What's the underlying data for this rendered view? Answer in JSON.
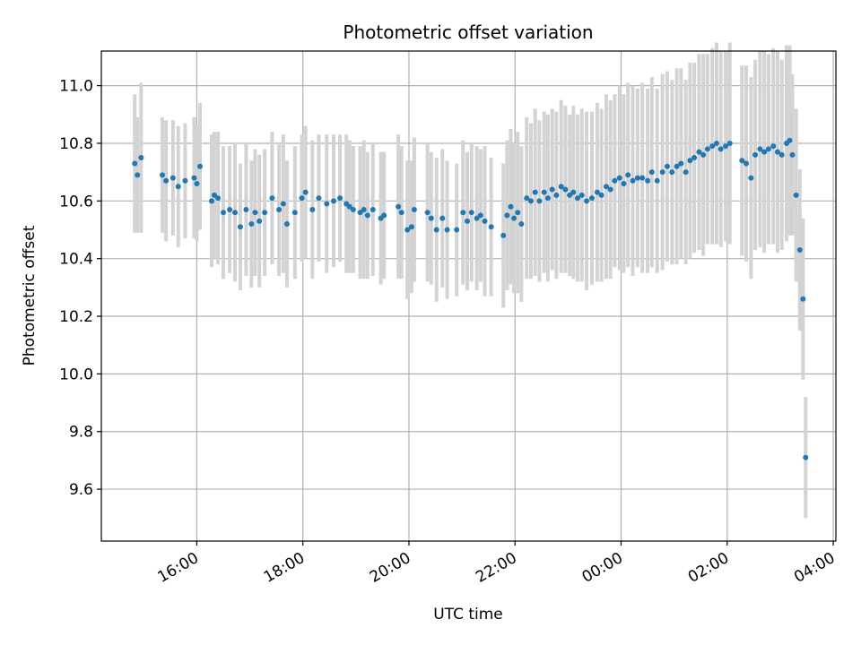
{
  "chart_data": {
    "type": "scatter",
    "title": "Photometric offset variation",
    "xlabel": "UTC time",
    "ylabel": "Photometric offset",
    "x_ticks": [
      "16:00",
      "18:00",
      "20:00",
      "22:00",
      "00:00",
      "02:00",
      "04:00"
    ],
    "y_ticks": [
      "9.6",
      "9.8",
      "10.0",
      "10.2",
      "10.4",
      "10.6",
      "10.8",
      "11.0"
    ],
    "ylim": [
      9.42,
      11.12
    ],
    "xlim_hours": [
      14.2,
      28.05
    ],
    "grid": true,
    "colors": {
      "points": "#1f77b4",
      "errorbars": "#d3d3d3",
      "grid": "#b0b0b0"
    },
    "series": [
      {
        "x_hours": [
          14.83,
          14.88,
          14.95,
          15.35,
          15.42,
          15.55,
          15.65,
          15.78,
          15.95,
          16.0,
          16.06,
          16.28,
          16.33,
          16.4,
          16.5,
          16.62,
          16.72,
          16.82,
          16.93,
          17.03,
          17.1,
          17.18,
          17.28,
          17.42,
          17.55,
          17.63,
          17.7,
          17.85,
          17.98,
          18.05,
          18.18,
          18.3,
          18.45,
          18.58,
          18.7,
          18.82,
          18.88,
          18.95,
          19.08,
          19.15,
          19.22,
          19.32,
          19.47,
          19.53,
          19.8,
          19.86,
          19.97,
          20.05,
          20.1,
          20.35,
          20.42,
          20.52,
          20.63,
          20.72,
          20.9,
          21.02,
          21.1,
          21.18,
          21.28,
          21.35,
          21.43,
          21.55,
          21.78,
          21.85,
          21.92,
          21.98,
          22.05,
          22.12,
          22.22,
          22.3,
          22.38,
          22.46,
          22.55,
          22.62,
          22.7,
          22.78,
          22.87,
          22.95,
          23.03,
          23.1,
          23.18,
          23.26,
          23.35,
          23.45,
          23.55,
          23.63,
          23.72,
          23.8,
          23.88,
          23.97,
          24.05,
          24.13,
          24.22,
          24.31,
          24.4,
          24.5,
          24.58,
          24.68,
          24.78,
          24.87,
          24.96,
          25.05,
          25.13,
          25.22,
          25.3,
          25.38,
          25.47,
          25.55,
          25.63,
          25.72,
          25.8,
          25.88,
          25.97,
          26.05,
          26.28,
          26.36,
          26.45,
          26.53,
          26.62,
          26.7,
          26.78,
          26.87,
          26.95,
          27.03,
          27.12,
          27.18,
          27.23,
          27.3,
          27.37,
          27.43,
          27.48
        ],
        "y": [
          10.73,
          10.69,
          10.75,
          10.69,
          10.67,
          10.68,
          10.65,
          10.67,
          10.68,
          10.66,
          10.72,
          10.6,
          10.62,
          10.61,
          10.56,
          10.57,
          10.56,
          10.51,
          10.57,
          10.52,
          10.56,
          10.53,
          10.56,
          10.61,
          10.57,
          10.59,
          10.52,
          10.56,
          10.61,
          10.63,
          10.57,
          10.61,
          10.59,
          10.6,
          10.61,
          10.59,
          10.58,
          10.57,
          10.56,
          10.57,
          10.55,
          10.57,
          10.54,
          10.55,
          10.58,
          10.56,
          10.5,
          10.51,
          10.57,
          10.56,
          10.54,
          10.5,
          10.54,
          10.5,
          10.5,
          10.56,
          10.53,
          10.56,
          10.54,
          10.55,
          10.53,
          10.51,
          10.48,
          10.55,
          10.58,
          10.54,
          10.56,
          10.52,
          10.61,
          10.6,
          10.63,
          10.6,
          10.63,
          10.61,
          10.64,
          10.62,
          10.65,
          10.64,
          10.62,
          10.63,
          10.61,
          10.62,
          10.6,
          10.61,
          10.63,
          10.62,
          10.65,
          10.64,
          10.67,
          10.68,
          10.66,
          10.69,
          10.67,
          10.68,
          10.68,
          10.67,
          10.7,
          10.67,
          10.7,
          10.72,
          10.7,
          10.72,
          10.73,
          10.7,
          10.74,
          10.75,
          10.77,
          10.76,
          10.78,
          10.79,
          10.8,
          10.78,
          10.79,
          10.8,
          10.74,
          10.73,
          10.68,
          10.76,
          10.78,
          10.77,
          10.78,
          10.79,
          10.77,
          10.76,
          10.8,
          10.81,
          10.76,
          10.62,
          10.43,
          10.26,
          9.71
        ],
        "err": [
          0.24,
          0.2,
          0.26,
          0.2,
          0.21,
          0.2,
          0.21,
          0.2,
          0.21,
          0.2,
          0.22,
          0.23,
          0.22,
          0.23,
          0.23,
          0.22,
          0.24,
          0.22,
          0.23,
          0.22,
          0.22,
          0.23,
          0.22,
          0.23,
          0.23,
          0.24,
          0.22,
          0.23,
          0.22,
          0.23,
          0.24,
          0.22,
          0.24,
          0.23,
          0.22,
          0.24,
          0.23,
          0.22,
          0.23,
          0.24,
          0.22,
          0.23,
          0.23,
          0.22,
          0.25,
          0.23,
          0.24,
          0.23,
          0.25,
          0.24,
          0.23,
          0.25,
          0.24,
          0.24,
          0.23,
          0.25,
          0.24,
          0.24,
          0.25,
          0.23,
          0.26,
          0.24,
          0.25,
          0.26,
          0.27,
          0.26,
          0.28,
          0.27,
          0.28,
          0.27,
          0.29,
          0.28,
          0.28,
          0.29,
          0.28,
          0.29,
          0.3,
          0.29,
          0.28,
          0.3,
          0.29,
          0.3,
          0.31,
          0.3,
          0.31,
          0.3,
          0.32,
          0.31,
          0.3,
          0.32,
          0.31,
          0.32,
          0.33,
          0.31,
          0.33,
          0.32,
          0.33,
          0.32,
          0.34,
          0.33,
          0.32,
          0.34,
          0.33,
          0.32,
          0.34,
          0.33,
          0.34,
          0.35,
          0.33,
          0.34,
          0.35,
          0.34,
          0.33,
          0.35,
          0.33,
          0.34,
          0.35,
          0.33,
          0.34,
          0.35,
          0.33,
          0.34,
          0.35,
          0.33,
          0.34,
          0.33,
          0.28,
          0.3,
          0.28,
          0.28,
          0.21
        ]
      }
    ]
  }
}
